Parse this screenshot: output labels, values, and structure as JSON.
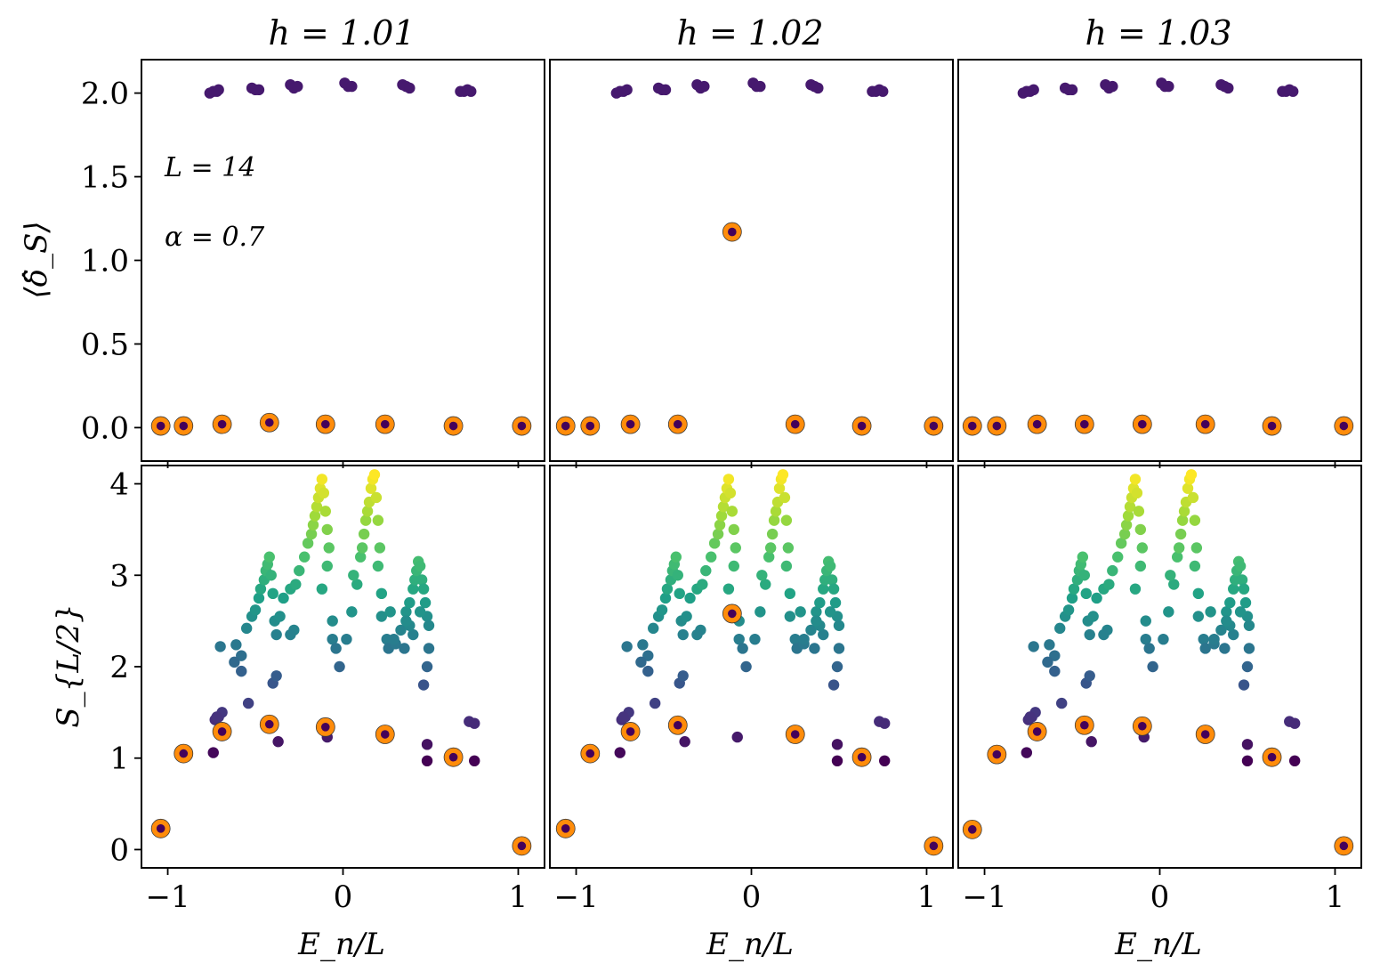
{
  "chart_data": [
    {
      "type": "scatter",
      "panel": "top-left",
      "title": "h = 1.01",
      "ylabel": "⟨δ̂_S⟩",
      "xlabel": "",
      "xlim": [
        -1.15,
        1.15
      ],
      "ylim": [
        -0.2,
        2.2
      ],
      "xticks": [
        -1,
        0,
        1
      ],
      "yticks": [
        0.0,
        0.5,
        1.0,
        1.5,
        2.0
      ],
      "ytick_labels": [
        "0.0",
        "0.5",
        "1.0",
        "1.5",
        "2.0"
      ],
      "annotations": [
        "L = 14",
        "α = 0.7"
      ],
      "series": [
        {
          "name": "",
          "x": [
            -0.76,
            -0.74,
            -0.72,
            -0.71,
            -0.52,
            -0.5,
            -0.48,
            -0.3,
            -0.28,
            -0.26,
            0.01,
            0.03,
            0.05,
            0.34,
            0.36,
            0.38,
            0.67,
            0.69,
            0.71,
            0.73
          ],
          "y": [
            2.0,
            2.01,
            2.01,
            2.02,
            2.03,
            2.02,
            2.02,
            2.05,
            2.03,
            2.04,
            2.06,
            2.04,
            2.04,
            2.05,
            2.04,
            2.03,
            2.01,
            2.01,
            2.02,
            2.01
          ]
        },
        {
          "name": "",
          "x": [
            -1.04,
            -0.91,
            -0.69,
            -0.42,
            -0.1,
            0.24,
            0.63,
            1.02
          ],
          "y": [
            0.01,
            0.01,
            0.02,
            0.03,
            0.02,
            0.02,
            0.01,
            0.01
          ],
          "highlight": true
        }
      ]
    },
    {
      "type": "scatter",
      "panel": "top-middle",
      "title": "h = 1.02",
      "ylabel": "",
      "xlabel": "",
      "xlim": [
        -1.15,
        1.15
      ],
      "ylim": [
        -0.2,
        2.2
      ],
      "xticks": [
        -1,
        0,
        1
      ],
      "series": [
        {
          "name": "",
          "x": [
            -0.77,
            -0.75,
            -0.73,
            -0.71,
            -0.53,
            -0.51,
            -0.49,
            -0.31,
            -0.29,
            -0.27,
            0.01,
            0.03,
            0.05,
            0.34,
            0.36,
            0.38,
            0.69,
            0.71,
            0.73,
            0.75
          ],
          "y": [
            2.0,
            2.01,
            2.01,
            2.02,
            2.03,
            2.02,
            2.02,
            2.05,
            2.03,
            2.04,
            2.06,
            2.04,
            2.04,
            2.05,
            2.04,
            2.03,
            2.01,
            2.01,
            2.02,
            2.01
          ]
        },
        {
          "name": "",
          "x": [
            -1.06,
            -0.92,
            -0.69,
            -0.42,
            -0.11,
            0.25,
            0.63,
            1.04
          ],
          "y": [
            0.01,
            0.01,
            0.02,
            0.02,
            1.17,
            0.02,
            0.01,
            0.01
          ],
          "highlight": true
        }
      ]
    },
    {
      "type": "scatter",
      "panel": "top-right",
      "title": "h = 1.03",
      "ylabel": "",
      "xlabel": "",
      "xlim": [
        -1.15,
        1.15
      ],
      "ylim": [
        -0.2,
        2.2
      ],
      "xticks": [
        -1,
        0,
        1
      ],
      "series": [
        {
          "name": "",
          "x": [
            -0.78,
            -0.76,
            -0.74,
            -0.72,
            -0.54,
            -0.52,
            -0.5,
            -0.31,
            -0.29,
            -0.27,
            0.01,
            0.03,
            0.05,
            0.35,
            0.37,
            0.39,
            0.7,
            0.72,
            0.74,
            0.76
          ],
          "y": [
            2.0,
            2.01,
            2.01,
            2.02,
            2.03,
            2.02,
            2.02,
            2.05,
            2.03,
            2.04,
            2.06,
            2.04,
            2.04,
            2.05,
            2.04,
            2.03,
            2.01,
            2.01,
            2.02,
            2.01
          ]
        },
        {
          "name": "",
          "x": [
            -1.07,
            -0.93,
            -0.7,
            -0.43,
            -0.1,
            0.26,
            0.64,
            1.05
          ],
          "y": [
            0.01,
            0.01,
            0.02,
            0.02,
            0.02,
            0.02,
            0.01,
            0.01
          ],
          "highlight": true
        }
      ]
    },
    {
      "type": "scatter",
      "panel": "bottom-left",
      "title": "",
      "ylabel": "S_{L/2}",
      "xlabel": "E_n/L",
      "xlim": [
        -1.15,
        1.15
      ],
      "ylim": [
        -0.2,
        4.2
      ],
      "xticks": [
        -1,
        0,
        1
      ],
      "xtick_labels": [
        "−1",
        "0",
        "1"
      ],
      "yticks": [
        0,
        1,
        2,
        3,
        4
      ],
      "ytick_labels": [
        "0",
        "1",
        "2",
        "3",
        "4"
      ],
      "series": [
        {
          "name": "",
          "x": [
            -0.73,
            -0.71,
            -0.69,
            -0.74,
            -0.7,
            -0.61,
            -0.58,
            -0.55,
            -0.52,
            -0.5,
            -0.48,
            -0.47,
            -0.45,
            -0.44,
            -0.43,
            -0.42,
            -0.41,
            -0.4,
            -0.39,
            -0.38,
            -0.36,
            -0.34,
            -0.3,
            -0.27,
            -0.25,
            -0.22,
            -0.2,
            -0.18,
            -0.17,
            -0.16,
            -0.15,
            -0.14,
            -0.13,
            -0.12,
            -0.11,
            -0.1,
            -0.09,
            -0.08,
            -0.09,
            -0.12,
            -0.06,
            -0.06,
            -0.04,
            -0.02,
            0.02,
            0.05,
            0.08,
            0.1,
            0.11,
            0.12,
            0.13,
            0.14,
            0.15,
            0.16,
            0.17,
            0.18,
            0.19,
            0.2,
            0.21,
            0.2,
            0.22,
            0.22,
            0.25,
            0.26,
            0.3,
            0.33,
            0.36,
            0.38,
            0.4,
            0.41,
            0.42,
            0.43,
            0.44,
            0.45,
            0.46,
            0.47,
            0.48,
            0.49,
            0.49,
            0.48,
            0.46,
            0.44,
            0.4,
            0.38,
            0.36,
            0.35,
            0.48,
            0.72,
            0.75,
            -0.72,
            -0.37,
            -0.09,
            0.48,
            0.75,
            -0.54,
            -0.58,
            -0.4,
            -0.38,
            -0.62,
            -0.28,
            -0.3,
            0.06,
            0.27,
            0.29
          ],
          "y": [
            1.42,
            1.45,
            1.5,
            1.06,
            2.22,
            2.24,
            2.12,
            2.42,
            2.55,
            2.62,
            2.75,
            2.85,
            2.95,
            3.05,
            3.12,
            3.2,
            3.0,
            2.8,
            2.5,
            2.35,
            2.55,
            2.75,
            2.85,
            2.9,
            3.05,
            3.2,
            3.35,
            3.45,
            3.55,
            3.65,
            3.75,
            3.85,
            3.95,
            4.05,
            3.9,
            3.7,
            3.5,
            3.3,
            3.1,
            2.85,
            2.5,
            2.3,
            2.2,
            2.0,
            2.3,
            2.6,
            2.9,
            3.2,
            3.3,
            3.45,
            3.6,
            3.7,
            3.8,
            3.95,
            4.05,
            4.1,
            3.85,
            3.6,
            3.3,
            3.1,
            2.8,
            2.55,
            2.3,
            2.2,
            2.25,
            2.4,
            2.6,
            2.7,
            2.85,
            2.95,
            3.05,
            3.15,
            3.1,
            2.95,
            2.85,
            2.7,
            2.55,
            2.45,
            2.2,
            2.0,
            1.8,
            2.6,
            2.35,
            2.45,
            2.5,
            2.2,
            1.15,
            1.4,
            1.38,
            1.45,
            1.18,
            1.23,
            0.97,
            0.97,
            1.6,
            1.95,
            1.82,
            1.9,
            2.05,
            2.4,
            2.35,
            3.0,
            2.6,
            2.3
          ]
        },
        {
          "name": "",
          "x": [
            -1.04,
            -0.91,
            -0.69,
            -0.42,
            -0.1,
            0.24,
            0.63,
            1.02
          ],
          "y": [
            0.23,
            1.05,
            1.29,
            1.37,
            1.34,
            1.26,
            1.01,
            0.04
          ],
          "highlight": true
        }
      ]
    },
    {
      "type": "scatter",
      "panel": "bottom-middle",
      "title": "",
      "ylabel": "",
      "xlabel": "E_n/L",
      "xlim": [
        -1.15,
        1.15
      ],
      "ylim": [
        -0.2,
        4.2
      ],
      "xticks": [
        -1,
        0,
        1
      ],
      "xtick_labels": [
        "−1",
        "0",
        "1"
      ],
      "series": [
        {
          "name": "",
          "x": [
            -0.74,
            -0.72,
            -0.7,
            -0.75,
            -0.71,
            -0.62,
            -0.59,
            -0.56,
            -0.53,
            -0.51,
            -0.49,
            -0.48,
            -0.46,
            -0.45,
            -0.44,
            -0.43,
            -0.42,
            -0.41,
            -0.4,
            -0.39,
            -0.37,
            -0.35,
            -0.31,
            -0.28,
            -0.26,
            -0.23,
            -0.21,
            -0.19,
            -0.18,
            -0.17,
            -0.16,
            -0.15,
            -0.14,
            -0.13,
            -0.12,
            -0.11,
            -0.1,
            -0.09,
            -0.1,
            -0.13,
            -0.07,
            -0.07,
            -0.05,
            -0.03,
            0.02,
            0.05,
            0.08,
            0.1,
            0.11,
            0.12,
            0.13,
            0.14,
            0.15,
            0.16,
            0.17,
            0.18,
            0.19,
            0.2,
            0.21,
            0.2,
            0.22,
            0.22,
            0.25,
            0.26,
            0.3,
            0.34,
            0.37,
            0.39,
            0.41,
            0.42,
            0.43,
            0.44,
            0.45,
            0.46,
            0.47,
            0.48,
            0.49,
            0.5,
            0.5,
            0.49,
            0.47,
            0.45,
            0.41,
            0.39,
            0.37,
            0.36,
            0.49,
            0.73,
            0.76,
            -0.73,
            -0.38,
            -0.08,
            0.49,
            0.76,
            -0.55,
            -0.59,
            -0.41,
            -0.39,
            -0.63,
            -0.29,
            -0.31,
            0.06,
            0.28,
            0.3
          ],
          "y": [
            1.42,
            1.45,
            1.5,
            1.06,
            2.22,
            2.24,
            2.12,
            2.42,
            2.55,
            2.62,
            2.75,
            2.85,
            2.95,
            3.05,
            3.12,
            3.2,
            3.0,
            2.8,
            2.5,
            2.35,
            2.55,
            2.75,
            2.85,
            2.9,
            3.05,
            3.2,
            3.35,
            3.45,
            3.55,
            3.65,
            3.75,
            3.85,
            3.95,
            4.05,
            3.9,
            3.7,
            3.5,
            3.3,
            3.1,
            2.85,
            2.5,
            2.3,
            2.2,
            2.0,
            2.3,
            2.6,
            2.9,
            3.2,
            3.3,
            3.45,
            3.6,
            3.7,
            3.8,
            3.95,
            4.05,
            4.1,
            3.85,
            3.6,
            3.3,
            3.1,
            2.8,
            2.55,
            2.3,
            2.2,
            2.25,
            2.4,
            2.6,
            2.7,
            2.85,
            2.95,
            3.05,
            3.15,
            3.1,
            2.95,
            2.85,
            2.7,
            2.55,
            2.45,
            2.2,
            2.0,
            1.8,
            2.6,
            2.35,
            2.45,
            2.5,
            2.2,
            1.15,
            1.4,
            1.38,
            1.45,
            1.18,
            1.23,
            0.97,
            0.97,
            1.6,
            1.95,
            1.82,
            1.9,
            2.05,
            2.4,
            2.35,
            3.0,
            2.6,
            2.3
          ]
        },
        {
          "name": "",
          "x": [
            -1.06,
            -0.92,
            -0.69,
            -0.42,
            -0.11,
            0.25,
            0.63,
            1.04
          ],
          "y": [
            0.23,
            1.05,
            1.29,
            1.36,
            2.58,
            1.26,
            1.01,
            0.04
          ],
          "highlight": true
        }
      ]
    },
    {
      "type": "scatter",
      "panel": "bottom-right",
      "title": "",
      "ylabel": "",
      "xlabel": "E_n/L",
      "xlim": [
        -1.15,
        1.15
      ],
      "ylim": [
        -0.2,
        4.2
      ],
      "xticks": [
        -1,
        0,
        1
      ],
      "xtick_labels": [
        "−1",
        "0",
        "1"
      ],
      "series": [
        {
          "name": "",
          "x": [
            -0.75,
            -0.73,
            -0.71,
            -0.76,
            -0.72,
            -0.63,
            -0.6,
            -0.57,
            -0.54,
            -0.52,
            -0.5,
            -0.49,
            -0.47,
            -0.46,
            -0.45,
            -0.44,
            -0.43,
            -0.42,
            -0.41,
            -0.4,
            -0.38,
            -0.36,
            -0.32,
            -0.29,
            -0.27,
            -0.24,
            -0.22,
            -0.2,
            -0.19,
            -0.18,
            -0.17,
            -0.16,
            -0.15,
            -0.14,
            -0.13,
            -0.12,
            -0.11,
            -0.1,
            -0.11,
            -0.14,
            -0.08,
            -0.08,
            -0.06,
            -0.04,
            0.02,
            0.05,
            0.08,
            0.1,
            0.11,
            0.12,
            0.13,
            0.14,
            0.15,
            0.16,
            0.17,
            0.18,
            0.19,
            0.2,
            0.21,
            0.2,
            0.22,
            0.22,
            0.25,
            0.26,
            0.31,
            0.35,
            0.38,
            0.4,
            0.42,
            0.43,
            0.44,
            0.45,
            0.46,
            0.47,
            0.48,
            0.49,
            0.5,
            0.51,
            0.51,
            0.5,
            0.48,
            0.46,
            0.42,
            0.4,
            0.38,
            0.37,
            0.5,
            0.74,
            0.77,
            -0.74,
            -0.39,
            -0.09,
            0.5,
            0.77,
            -0.56,
            -0.6,
            -0.42,
            -0.4,
            -0.64,
            -0.3,
            -0.32,
            0.06,
            0.29,
            0.31
          ],
          "y": [
            1.42,
            1.45,
            1.5,
            1.06,
            2.22,
            2.24,
            2.12,
            2.42,
            2.55,
            2.62,
            2.75,
            2.85,
            2.95,
            3.05,
            3.12,
            3.2,
            3.0,
            2.8,
            2.5,
            2.35,
            2.55,
            2.75,
            2.85,
            2.9,
            3.05,
            3.2,
            3.35,
            3.45,
            3.55,
            3.65,
            3.75,
            3.85,
            3.95,
            4.05,
            3.9,
            3.7,
            3.5,
            3.3,
            3.1,
            2.85,
            2.5,
            2.3,
            2.2,
            2.0,
            2.3,
            2.6,
            2.9,
            3.2,
            3.3,
            3.45,
            3.6,
            3.7,
            3.8,
            3.95,
            4.05,
            4.1,
            3.85,
            3.6,
            3.3,
            3.1,
            2.8,
            2.55,
            2.3,
            2.2,
            2.25,
            2.4,
            2.6,
            2.7,
            2.85,
            2.95,
            3.05,
            3.15,
            3.1,
            2.95,
            2.85,
            2.7,
            2.55,
            2.45,
            2.2,
            2.0,
            1.8,
            2.6,
            2.35,
            2.45,
            2.5,
            2.2,
            1.15,
            1.4,
            1.38,
            1.45,
            1.18,
            1.23,
            0.97,
            0.97,
            1.6,
            1.95,
            1.82,
            1.9,
            2.05,
            2.4,
            2.35,
            3.0,
            2.6,
            2.3
          ]
        },
        {
          "name": "",
          "x": [
            -1.07,
            -0.93,
            -0.7,
            -0.43,
            -0.1,
            0.26,
            0.64,
            1.05
          ],
          "y": [
            0.22,
            1.04,
            1.29,
            1.36,
            1.35,
            1.26,
            1.01,
            0.04
          ],
          "highlight": true
        }
      ]
    }
  ],
  "colors": {
    "highlight_ring": "#ff8c0a",
    "highlight_core": "#44015a",
    "viridis_low": "#440154",
    "viridis_high": "#fde725"
  }
}
